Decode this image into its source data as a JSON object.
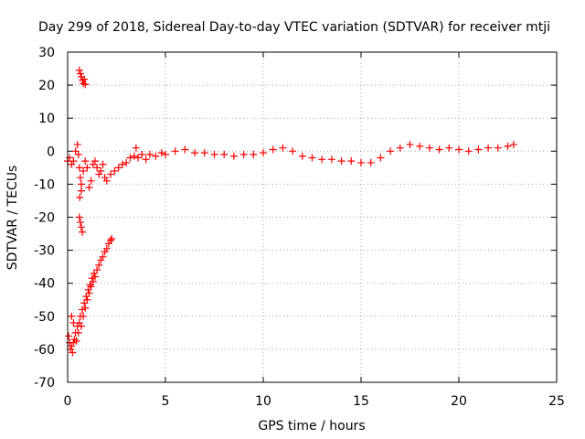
{
  "chart_data": {
    "type": "scatter",
    "title": "Day 299 of 2018, Sidereal Day-to-day VTEC variation (SDTVAR) for receiver mtji",
    "xlabel": "GPS time / hours",
    "ylabel": "SDTVAR / TECUs",
    "xlim": [
      0,
      25
    ],
    "ylim": [
      -70,
      30
    ],
    "xticks": [
      0,
      5,
      10,
      15,
      20,
      25
    ],
    "yticks": [
      -70,
      -60,
      -50,
      -40,
      -30,
      -20,
      -10,
      0,
      10,
      20,
      30
    ],
    "grid": true,
    "marker": "+",
    "color": "#ff0000",
    "series": [
      {
        "name": "SDTVAR",
        "points": [
          [
            0.6,
            24.5
          ],
          [
            0.65,
            23.5
          ],
          [
            0.7,
            22.5
          ],
          [
            0.75,
            21.5
          ],
          [
            0.8,
            20.5
          ],
          [
            0.85,
            21.8
          ],
          [
            0.9,
            20.2
          ],
          [
            0.05,
            -56.0
          ],
          [
            0.1,
            -58.0
          ],
          [
            0.15,
            -60.0
          ],
          [
            0.2,
            -59.0
          ],
          [
            0.25,
            -61.0
          ],
          [
            0.3,
            -58.0
          ],
          [
            0.35,
            -57.0
          ],
          [
            0.4,
            -55.0
          ],
          [
            0.45,
            -57.5
          ],
          [
            0.5,
            -53.0
          ],
          [
            0.55,
            -55.0
          ],
          [
            0.6,
            -52.0
          ],
          [
            0.65,
            -50.0
          ],
          [
            0.7,
            -53.0
          ],
          [
            0.75,
            -48.0
          ],
          [
            0.8,
            -50.0
          ],
          [
            0.85,
            -46.0
          ],
          [
            0.9,
            -47.5
          ],
          [
            0.95,
            -44.0
          ],
          [
            1.0,
            -45.0
          ],
          [
            1.05,
            -42.0
          ],
          [
            1.1,
            -43.0
          ],
          [
            1.15,
            -40.5
          ],
          [
            1.2,
            -41.0
          ],
          [
            1.25,
            -38.5
          ],
          [
            1.3,
            -39.5
          ],
          [
            1.35,
            -37.0
          ],
          [
            1.4,
            -38.0
          ],
          [
            1.5,
            -36.0
          ],
          [
            1.6,
            -34.5
          ],
          [
            1.7,
            -33.0
          ],
          [
            1.8,
            -32.0
          ],
          [
            1.9,
            -30.5
          ],
          [
            2.0,
            -29.5
          ],
          [
            2.1,
            -28.0
          ],
          [
            2.2,
            -27.0
          ],
          [
            2.25,
            -26.5
          ],
          [
            0.2,
            -50.0
          ],
          [
            0.3,
            -52.0
          ],
          [
            0.6,
            -20.0
          ],
          [
            0.65,
            -21.5
          ],
          [
            0.7,
            -23.0
          ],
          [
            0.75,
            -24.5
          ],
          [
            0.62,
            -14.0
          ],
          [
            0.7,
            -12.0
          ],
          [
            0.0,
            -3.0
          ],
          [
            0.1,
            -2.0
          ],
          [
            0.2,
            -4.0
          ],
          [
            0.3,
            -3.0
          ],
          [
            0.4,
            0.0
          ],
          [
            0.5,
            2.0
          ],
          [
            0.55,
            -1.0
          ],
          [
            0.6,
            -5.0
          ],
          [
            0.65,
            -8.0
          ],
          [
            0.7,
            -10.0
          ],
          [
            0.8,
            -6.0
          ],
          [
            0.9,
            -3.0
          ],
          [
            1.0,
            -5.0
          ],
          [
            1.1,
            -11.0
          ],
          [
            1.2,
            -9.0
          ],
          [
            1.3,
            -4.0
          ],
          [
            1.4,
            -3.0
          ],
          [
            1.5,
            -5.0
          ],
          [
            1.6,
            -7.0
          ],
          [
            1.7,
            -6.0
          ],
          [
            1.8,
            -4.0
          ],
          [
            1.9,
            -8.0
          ],
          [
            2.0,
            -9.0
          ],
          [
            2.2,
            -7.0
          ],
          [
            2.4,
            -6.0
          ],
          [
            2.6,
            -5.0
          ],
          [
            2.8,
            -4.0
          ],
          [
            3.0,
            -3.5
          ],
          [
            3.2,
            -2.0
          ],
          [
            3.4,
            -1.5
          ],
          [
            3.5,
            1.0
          ],
          [
            3.6,
            -2.0
          ],
          [
            3.8,
            -1.0
          ],
          [
            4.0,
            -2.5
          ],
          [
            4.2,
            -1.0
          ],
          [
            4.5,
            -1.5
          ],
          [
            4.8,
            -0.5
          ],
          [
            5.0,
            -1.0
          ],
          [
            5.5,
            0.0
          ],
          [
            6.0,
            0.5
          ],
          [
            6.5,
            -0.5
          ],
          [
            7.0,
            -0.5
          ],
          [
            7.5,
            -1.0
          ],
          [
            8.0,
            -1.0
          ],
          [
            8.5,
            -1.5
          ],
          [
            9.0,
            -1.0
          ],
          [
            9.5,
            -1.0
          ],
          [
            10.0,
            -0.5
          ],
          [
            10.5,
            0.5
          ],
          [
            11.0,
            1.0
          ],
          [
            11.5,
            0.0
          ],
          [
            12.0,
            -1.5
          ],
          [
            12.5,
            -2.0
          ],
          [
            13.0,
            -2.5
          ],
          [
            13.5,
            -2.5
          ],
          [
            14.0,
            -3.0
          ],
          [
            14.5,
            -3.0
          ],
          [
            15.0,
            -3.5
          ],
          [
            15.5,
            -3.5
          ],
          [
            16.0,
            -2.0
          ],
          [
            16.5,
            0.0
          ],
          [
            17.0,
            1.0
          ],
          [
            17.5,
            2.0
          ],
          [
            18.0,
            1.5
          ],
          [
            18.5,
            1.0
          ],
          [
            19.0,
            0.5
          ],
          [
            19.5,
            1.0
          ],
          [
            20.0,
            0.5
          ],
          [
            20.5,
            0.0
          ],
          [
            21.0,
            0.5
          ],
          [
            21.5,
            1.0
          ],
          [
            22.0,
            1.0
          ],
          [
            22.5,
            1.5
          ],
          [
            22.8,
            2.0
          ]
        ]
      }
    ]
  }
}
